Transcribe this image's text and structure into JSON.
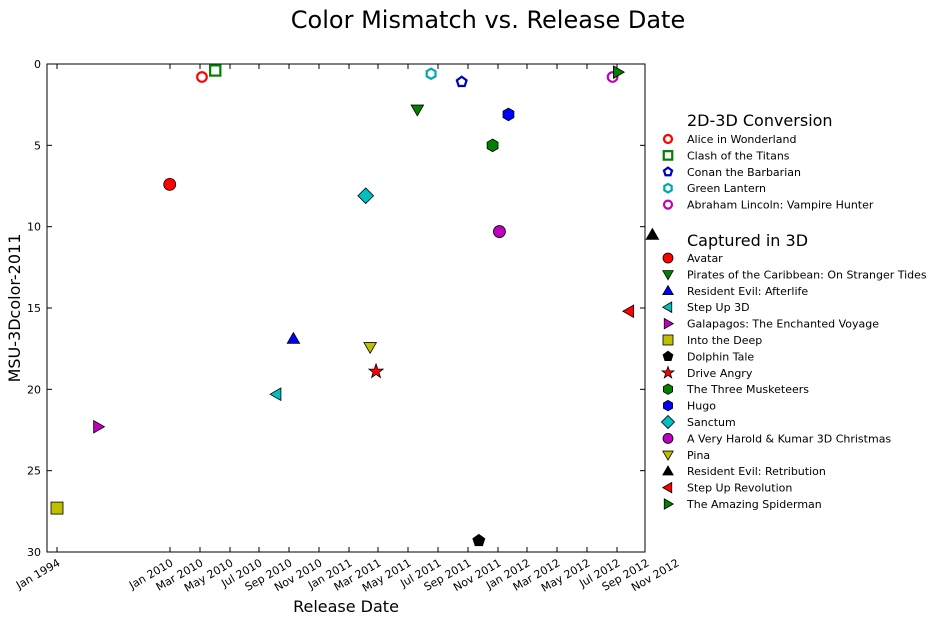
{
  "chart_data": {
    "type": "scatter",
    "title": "Color Mismatch vs. Release Date",
    "xlabel": "Release Date",
    "ylabel": "MSU-3Dcolor-2011",
    "ylim": [
      30,
      0
    ],
    "y_inverted": true,
    "y_ticks": [
      0,
      5,
      10,
      15,
      20,
      25,
      30
    ],
    "x_ticks": [
      {
        "value": "1994-01-01",
        "label": "Jan 1994"
      },
      {
        "value": "2010-01-01",
        "label": "Jan 2010"
      },
      {
        "value": "2010-03-01",
        "label": "Mar 2010"
      },
      {
        "value": "2010-05-01",
        "label": "May 2010"
      },
      {
        "value": "2010-07-01",
        "label": "Jul 2010"
      },
      {
        "value": "2010-09-01",
        "label": "Sep 2010"
      },
      {
        "value": "2010-11-01",
        "label": "Nov 2010"
      },
      {
        "value": "2011-01-01",
        "label": "Jan 2011"
      },
      {
        "value": "2011-03-01",
        "label": "Mar 2011"
      },
      {
        "value": "2011-05-01",
        "label": "May 2011"
      },
      {
        "value": "2011-07-01",
        "label": "Jul 2011"
      },
      {
        "value": "2011-09-01",
        "label": "Sep 2011"
      },
      {
        "value": "2011-11-01",
        "label": "Nov 2011"
      },
      {
        "value": "2012-01-01",
        "label": "Jan 2012"
      },
      {
        "value": "2012-03-01",
        "label": "Mar 2012"
      },
      {
        "value": "2012-05-01",
        "label": "May 2012"
      },
      {
        "value": "2012-07-01",
        "label": "Jul 2012"
      },
      {
        "value": "2012-09-01",
        "label": "Sep 2012"
      },
      {
        "value": "2012-11-01",
        "label": "Nov 2012"
      }
    ],
    "grid": false,
    "legend_position": "right",
    "legend_groups": [
      {
        "title": "2D-3D Conversion",
        "series": [
          {
            "name": "Alice in Wonderland",
            "marker": "circle-open",
            "color": "#ff0000",
            "x": "2010-03-05",
            "y": 0.8
          },
          {
            "name": "Clash of the Titans",
            "marker": "square-open",
            "color": "#007f00",
            "x": "2010-04-01",
            "y": 0.4
          },
          {
            "name": "Conan the Barbarian",
            "marker": "pentagon-open",
            "color": "#0000bf",
            "x": "2011-08-19",
            "y": 1.1
          },
          {
            "name": "Green Lantern",
            "marker": "hexagon-open",
            "color": "#00aaaa",
            "x": "2011-06-17",
            "y": 0.6
          },
          {
            "name": "Abraham Lincoln: Vampire Hunter",
            "marker": "circle-open",
            "color": "#bf00bf",
            "x": "2012-06-22",
            "y": 0.8
          }
        ]
      },
      {
        "title": "Captured in 3D",
        "series": [
          {
            "name": "Avatar",
            "marker": "circle",
            "color": "#ff0000",
            "x": "2009-12-18",
            "y": 7.4
          },
          {
            "name": "Pirates of the Caribbean: On Stranger Tides",
            "marker": "triangle-down",
            "color": "#007f00",
            "x": "2011-05-20",
            "y": 2.8
          },
          {
            "name": "Resident Evil: Afterlife",
            "marker": "triangle-up",
            "color": "#0000ff",
            "x": "2010-09-10",
            "y": 16.9
          },
          {
            "name": "Step Up 3D",
            "marker": "triangle-left",
            "color": "#00bfbf",
            "x": "2010-08-06",
            "y": 20.3
          },
          {
            "name": "Galapagos: The Enchanted Voyage",
            "marker": "triangle-right",
            "color": "#bf00bf",
            "x": "1999-10-29",
            "y": 22.3
          },
          {
            "name": "Into the Deep",
            "marker": "square",
            "color": "#bfbf00",
            "x": "1994-01-01",
            "y": 27.3
          },
          {
            "name": "Dolphin Tale",
            "marker": "pentagon",
            "color": "#000000",
            "x": "2011-09-23",
            "y": 29.3
          },
          {
            "name": "Drive Angry",
            "marker": "star",
            "color": "#ff0000",
            "x": "2011-02-25",
            "y": 18.9
          },
          {
            "name": "The Three Musketeers",
            "marker": "hexagon",
            "color": "#007f00",
            "x": "2011-10-21",
            "y": 5.0
          },
          {
            "name": "Hugo",
            "marker": "hexagon",
            "color": "#0000ff",
            "x": "2011-11-23",
            "y": 3.1
          },
          {
            "name": "Sanctum",
            "marker": "diamond",
            "color": "#00bfbf",
            "x": "2011-02-04",
            "y": 8.1
          },
          {
            "name": "A Very Harold & Kumar 3D Christmas",
            "marker": "circle",
            "color": "#bf00bf",
            "x": "2011-11-04",
            "y": 10.3
          },
          {
            "name": "Pina",
            "marker": "triangle-down",
            "color": "#bfbf00",
            "x": "2011-02-13",
            "y": 17.4
          },
          {
            "name": "Resident Evil: Retribution",
            "marker": "triangle-up",
            "color": "#000000",
            "x": "2012-09-14",
            "y": 10.5
          },
          {
            "name": "Step Up Revolution",
            "marker": "triangle-left",
            "color": "#ff0000",
            "x": "2012-07-27",
            "y": 15.2
          },
          {
            "name": "The Amazing Spiderman",
            "marker": "triangle-right",
            "color": "#007f00",
            "x": "2012-07-03",
            "y": 0.5
          }
        ]
      }
    ]
  }
}
